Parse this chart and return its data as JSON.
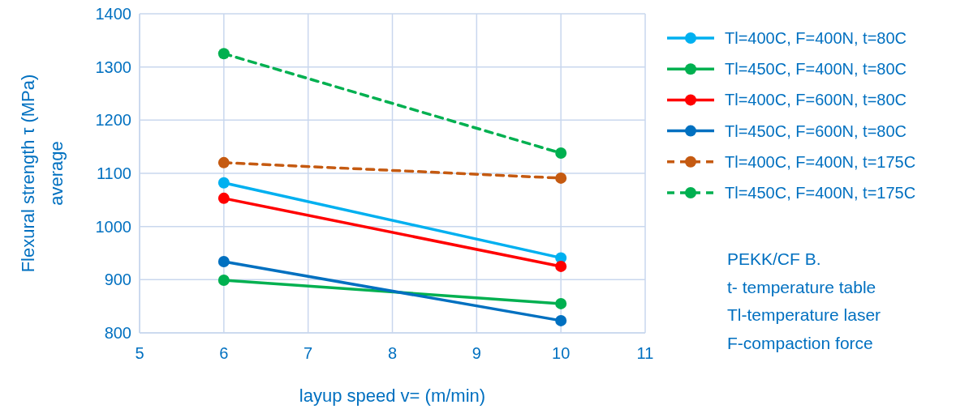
{
  "chart_data": {
    "type": "line",
    "xlabel": "layup speed  v= (m/min)",
    "ylabel": "Flexural strength τ (MPa)\naverage",
    "x": [
      6,
      10
    ],
    "xlim": [
      5,
      11
    ],
    "xticks": [
      5,
      6,
      7,
      8,
      9,
      10,
      11
    ],
    "ylim": [
      800,
      1400
    ],
    "yticks": [
      800,
      900,
      1000,
      1100,
      1200,
      1300,
      1400
    ],
    "grid": true,
    "legend": "right",
    "marker": "circle",
    "series": [
      {
        "name": "Tl=400C, F=400N, t=80C",
        "color": "#00b0f0",
        "values": [
          1082,
          941
        ],
        "line_style": "solid"
      },
      {
        "name": "Tl=450C, F=400N, t=80C",
        "color": "#00b050",
        "values": [
          899,
          855
        ],
        "line_style": "solid"
      },
      {
        "name": "Tl=400C, F=600N, t=80C",
        "color": "#ff0000",
        "values": [
          1053,
          925
        ],
        "line_style": "solid"
      },
      {
        "name": "Tl=450C, F=600N, t=80C",
        "color": "#0070c0",
        "values": [
          934,
          823
        ],
        "line_style": "solid"
      },
      {
        "name": "Tl=400C, F=400N, t=175C",
        "color": "#c55a11",
        "values": [
          1120,
          1091
        ],
        "line_style": "dashed"
      },
      {
        "name": "Tl=450C, F=400N, t=175C",
        "color": "#00b050",
        "values": [
          1325,
          1138
        ],
        "line_style": "dashed"
      }
    ],
    "annotations": [
      "PEKK/CF B.",
      "t- temperature table",
      "Tl-temperature laser",
      "F-compaction force"
    ]
  }
}
